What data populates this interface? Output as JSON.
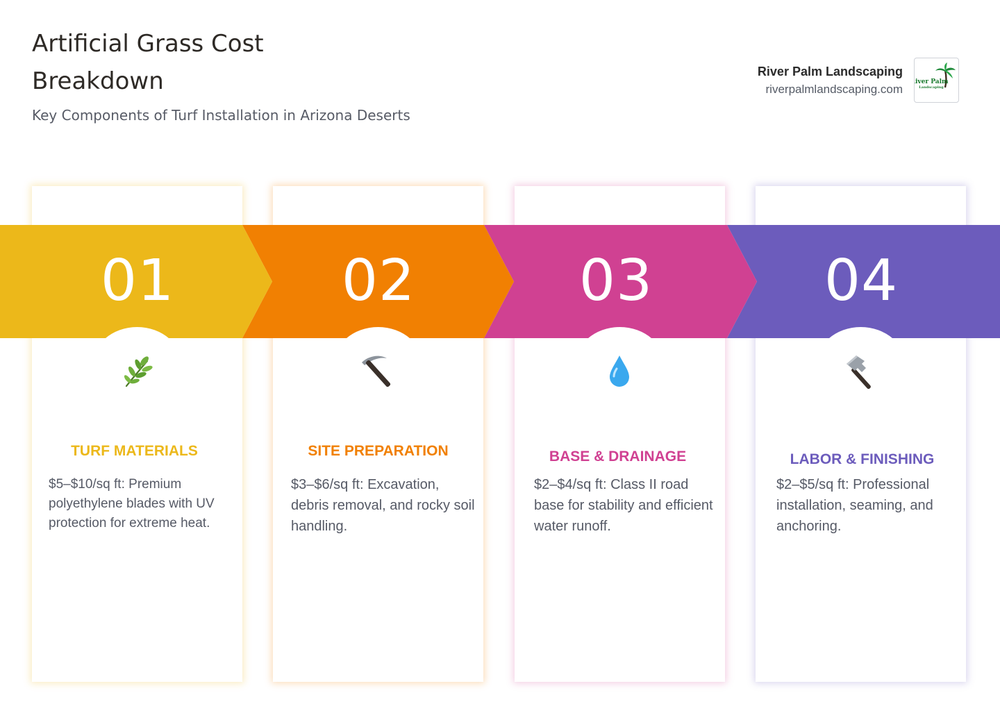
{
  "header": {
    "title": "Artificial Grass Cost Breakdown",
    "subtitle": "Key Components of Turf Installation in Arizona Deserts"
  },
  "brand": {
    "name": "River Palm Landscaping",
    "url": "riverpalmlandscaping.com",
    "logo_text_line1": "River Palm",
    "logo_text_line2": "Landscaping"
  },
  "steps": [
    {
      "number": "01",
      "icon": "herb-icon",
      "heading": "TURF MATERIALS",
      "description": "$5–$10/sq ft: Premium polyethylene blades with UV protection for extreme heat.",
      "color": "#ecb81a"
    },
    {
      "number": "02",
      "icon": "pick-icon",
      "heading": "SITE PREPARATION",
      "description": "$3–$6/sq ft: Excavation, debris removal, and rocky soil handling.",
      "color": "#f18002"
    },
    {
      "number": "03",
      "icon": "droplet-icon",
      "heading": "BASE & DRAINAGE",
      "description": "$2–$4/sq ft: Class II road base for stability and efficient water runoff.",
      "color": "#d04192"
    },
    {
      "number": "04",
      "icon": "hammer-icon",
      "heading": "LABOR & FINISHING",
      "description": "$2–$5/sq ft: Professional installation, seaming, and anchoring.",
      "color": "#6c5cbc"
    }
  ]
}
